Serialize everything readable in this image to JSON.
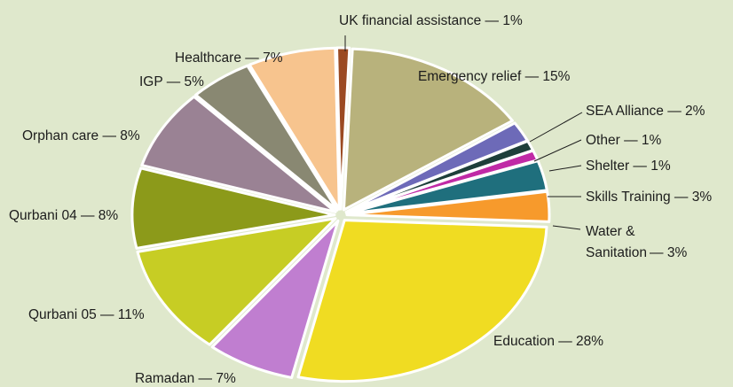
{
  "chart_data": {
    "type": "pie",
    "title": "",
    "slices": [
      {
        "label": "UK financial assistance",
        "value": 1,
        "color": "#9b4a22"
      },
      {
        "label": "Emergency relief",
        "value": 15,
        "color": "#b8b27c"
      },
      {
        "label": "SEA Alliance",
        "value": 2,
        "color": "#6d6ab8"
      },
      {
        "label": "Other",
        "value": 1,
        "color": "#1e3f3a"
      },
      {
        "label": "Shelter",
        "value": 1,
        "color": "#c02aa6"
      },
      {
        "label": "Skills Training",
        "value": 3,
        "color": "#1f6f7d"
      },
      {
        "label": "Water & Sanitation",
        "value": 3,
        "color": "#f79a2c"
      },
      {
        "label": "Education",
        "value": 28,
        "color": "#f0dc22"
      },
      {
        "label": "Ramadan",
        "value": 7,
        "color": "#c07ed0"
      },
      {
        "label": "Qurbani 05",
        "value": 11,
        "color": "#c7cd24"
      },
      {
        "label": "Qurbani 04",
        "value": 8,
        "color": "#8c9a1a"
      },
      {
        "label": "Orphan care",
        "value": 8,
        "color": "#9a8294"
      },
      {
        "label": "IGP",
        "value": 5,
        "color": "#898872"
      },
      {
        "label": "Healthcare",
        "value": 7,
        "color": "#f7c48e"
      }
    ]
  },
  "labels": {
    "uk": "UK financial assistance — 1%",
    "emergency": "Emergency relief — 15%",
    "sea": "SEA Alliance — 2%",
    "other": "Other — 1%",
    "shelter": "Shelter — 1%",
    "skills": "Skills Training — 3%",
    "water1": "Water &",
    "water2": "Sanitation — 3%",
    "education": "Education — 28%",
    "ramadan": "Ramadan — 7%",
    "qurbani05": "Qurbani 05 — 11%",
    "qurbani04": "Qurbani 04 — 8%",
    "orphan": "Orphan care — 8%",
    "igp": "IGP — 5%",
    "healthcare": "Healthcare — 7%"
  }
}
